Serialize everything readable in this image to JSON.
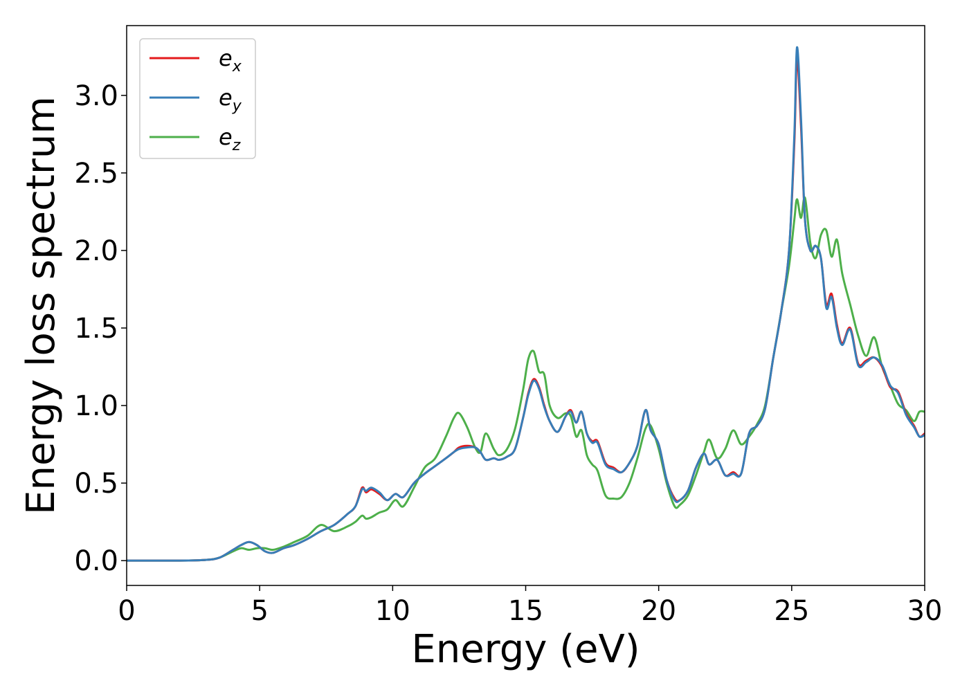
{
  "chart_data": {
    "type": "line",
    "xlabel": "Energy (eV)",
    "ylabel": "Energy loss spectrum",
    "xlim": [
      0,
      30
    ],
    "ylim": [
      -0.16,
      3.45
    ],
    "xticks": [
      0,
      5,
      10,
      15,
      20,
      25,
      30
    ],
    "xtick_labels": [
      "0",
      "5",
      "10",
      "15",
      "20",
      "25",
      "30"
    ],
    "yticks": [
      0.0,
      0.5,
      1.0,
      1.5,
      2.0,
      2.5,
      3.0
    ],
    "ytick_labels": [
      "0.0",
      "0.5",
      "1.0",
      "1.5",
      "2.0",
      "2.5",
      "3.0"
    ],
    "grid": false,
    "legend_position": "top-left",
    "series": [
      {
        "name": "e",
        "subscript": "x",
        "color": "#e41a1c",
        "x": [
          0,
          1,
          2,
          3,
          3.5,
          4.0,
          4.3,
          4.6,
          4.9,
          5.2,
          5.5,
          5.9,
          6.3,
          6.8,
          7.3,
          7.8,
          8.3,
          8.6,
          8.85,
          9.0,
          9.2,
          9.5,
          9.8,
          10.1,
          10.4,
          10.8,
          11.2,
          11.6,
          12.0,
          12.3,
          12.5,
          12.8,
          13.1,
          13.3,
          13.5,
          13.8,
          14.0,
          14.3,
          14.6,
          14.9,
          15.1,
          15.3,
          15.5,
          15.7,
          15.9,
          16.2,
          16.5,
          16.7,
          16.9,
          17.1,
          17.3,
          17.5,
          17.7,
          18.0,
          18.3,
          18.6,
          18.9,
          19.2,
          19.5,
          19.7,
          20.0,
          20.3,
          20.6,
          20.8,
          21.1,
          21.4,
          21.7,
          21.9,
          22.2,
          22.5,
          22.8,
          23.1,
          23.4,
          23.7,
          24.0,
          24.3,
          24.6,
          24.9,
          25.1,
          25.2,
          25.35,
          25.5,
          25.7,
          25.9,
          26.1,
          26.3,
          26.5,
          26.7,
          26.9,
          27.2,
          27.5,
          27.8,
          28.1,
          28.4,
          28.7,
          29.0,
          29.3,
          29.6,
          29.8,
          30.0
        ],
        "y": [
          0.0,
          0.0,
          0.0,
          0.005,
          0.02,
          0.07,
          0.1,
          0.12,
          0.1,
          0.06,
          0.05,
          0.08,
          0.1,
          0.14,
          0.19,
          0.23,
          0.3,
          0.35,
          0.47,
          0.44,
          0.46,
          0.43,
          0.39,
          0.43,
          0.41,
          0.5,
          0.56,
          0.61,
          0.66,
          0.7,
          0.73,
          0.74,
          0.73,
          0.7,
          0.65,
          0.66,
          0.65,
          0.67,
          0.72,
          0.92,
          1.08,
          1.17,
          1.12,
          1.0,
          0.9,
          0.83,
          0.93,
          0.97,
          0.89,
          0.96,
          0.82,
          0.77,
          0.77,
          0.63,
          0.6,
          0.57,
          0.63,
          0.74,
          0.97,
          0.84,
          0.75,
          0.52,
          0.4,
          0.39,
          0.45,
          0.6,
          0.69,
          0.62,
          0.65,
          0.55,
          0.57,
          0.56,
          0.82,
          0.87,
          0.98,
          1.3,
          1.6,
          2.0,
          2.7,
          3.24,
          2.8,
          2.2,
          2.0,
          2.03,
          1.95,
          1.65,
          1.72,
          1.52,
          1.4,
          1.5,
          1.27,
          1.29,
          1.31,
          1.25,
          1.12,
          1.09,
          0.95,
          0.87,
          0.8,
          0.82
        ]
      },
      {
        "name": "e",
        "subscript": "y",
        "color": "#377eb8",
        "x": [
          0,
          1,
          2,
          3,
          3.5,
          4.0,
          4.3,
          4.6,
          4.9,
          5.2,
          5.5,
          5.9,
          6.3,
          6.8,
          7.3,
          7.8,
          8.3,
          8.6,
          8.85,
          9.0,
          9.2,
          9.5,
          9.8,
          10.1,
          10.4,
          10.8,
          11.2,
          11.6,
          12.0,
          12.3,
          12.5,
          12.8,
          13.1,
          13.3,
          13.5,
          13.8,
          14.0,
          14.3,
          14.6,
          14.9,
          15.1,
          15.3,
          15.5,
          15.7,
          15.9,
          16.2,
          16.5,
          16.7,
          16.9,
          17.1,
          17.3,
          17.5,
          17.7,
          18.0,
          18.3,
          18.6,
          18.9,
          19.2,
          19.5,
          19.7,
          20.0,
          20.3,
          20.6,
          20.8,
          21.1,
          21.4,
          21.7,
          21.9,
          22.2,
          22.5,
          22.8,
          23.1,
          23.4,
          23.7,
          24.0,
          24.3,
          24.6,
          24.9,
          25.1,
          25.2,
          25.35,
          25.5,
          25.7,
          25.9,
          26.1,
          26.3,
          26.5,
          26.7,
          26.9,
          27.2,
          27.5,
          27.8,
          28.1,
          28.4,
          28.7,
          29.0,
          29.3,
          29.6,
          29.8,
          30.0
        ],
        "y": [
          0.0,
          0.0,
          0.0,
          0.005,
          0.02,
          0.07,
          0.1,
          0.12,
          0.1,
          0.06,
          0.05,
          0.08,
          0.1,
          0.14,
          0.19,
          0.23,
          0.3,
          0.35,
          0.46,
          0.45,
          0.47,
          0.44,
          0.39,
          0.43,
          0.41,
          0.5,
          0.56,
          0.61,
          0.66,
          0.7,
          0.72,
          0.73,
          0.73,
          0.7,
          0.65,
          0.66,
          0.65,
          0.67,
          0.72,
          0.92,
          1.07,
          1.16,
          1.11,
          0.99,
          0.9,
          0.83,
          0.93,
          0.96,
          0.89,
          0.96,
          0.82,
          0.76,
          0.76,
          0.62,
          0.59,
          0.57,
          0.63,
          0.74,
          0.97,
          0.84,
          0.75,
          0.52,
          0.39,
          0.39,
          0.45,
          0.6,
          0.69,
          0.62,
          0.65,
          0.55,
          0.56,
          0.56,
          0.82,
          0.87,
          0.98,
          1.3,
          1.6,
          2.0,
          2.75,
          3.31,
          2.85,
          2.2,
          2.0,
          2.03,
          1.95,
          1.63,
          1.7,
          1.5,
          1.39,
          1.49,
          1.26,
          1.28,
          1.31,
          1.26,
          1.13,
          1.08,
          0.94,
          0.86,
          0.8,
          0.81
        ]
      },
      {
        "name": "e",
        "subscript": "z",
        "color": "#4daf4a",
        "x": [
          0,
          1,
          2,
          3,
          3.5,
          4.0,
          4.3,
          4.6,
          4.9,
          5.2,
          5.5,
          5.9,
          6.3,
          6.8,
          7.3,
          7.8,
          8.3,
          8.6,
          8.85,
          9.0,
          9.2,
          9.5,
          9.8,
          10.1,
          10.4,
          10.8,
          11.2,
          11.6,
          12.0,
          12.3,
          12.5,
          12.8,
          13.1,
          13.3,
          13.5,
          13.8,
          14.0,
          14.3,
          14.6,
          14.9,
          15.1,
          15.3,
          15.5,
          15.7,
          15.9,
          16.2,
          16.5,
          16.7,
          16.9,
          17.1,
          17.3,
          17.5,
          17.7,
          18.0,
          18.3,
          18.6,
          18.9,
          19.2,
          19.5,
          19.7,
          20.0,
          20.3,
          20.6,
          20.8,
          21.1,
          21.4,
          21.7,
          21.9,
          22.2,
          22.5,
          22.8,
          23.1,
          23.4,
          23.7,
          24.0,
          24.3,
          24.6,
          24.9,
          25.1,
          25.2,
          25.35,
          25.5,
          25.7,
          25.9,
          26.1,
          26.3,
          26.5,
          26.7,
          26.9,
          27.2,
          27.5,
          27.8,
          28.1,
          28.4,
          28.7,
          29.0,
          29.3,
          29.6,
          29.8,
          30.0
        ],
        "y": [
          0.0,
          0.0,
          0.0,
          0.005,
          0.02,
          0.06,
          0.08,
          0.07,
          0.08,
          0.08,
          0.07,
          0.09,
          0.12,
          0.16,
          0.23,
          0.19,
          0.22,
          0.25,
          0.29,
          0.27,
          0.28,
          0.31,
          0.33,
          0.39,
          0.35,
          0.47,
          0.6,
          0.66,
          0.8,
          0.92,
          0.95,
          0.86,
          0.73,
          0.7,
          0.82,
          0.72,
          0.68,
          0.72,
          0.85,
          1.1,
          1.3,
          1.35,
          1.22,
          1.2,
          1.0,
          0.92,
          0.95,
          0.93,
          0.8,
          0.84,
          0.68,
          0.62,
          0.58,
          0.42,
          0.4,
          0.41,
          0.5,
          0.66,
          0.85,
          0.87,
          0.72,
          0.5,
          0.35,
          0.36,
          0.42,
          0.55,
          0.7,
          0.78,
          0.66,
          0.72,
          0.84,
          0.75,
          0.8,
          0.88,
          1.0,
          1.3,
          1.6,
          1.9,
          2.2,
          2.33,
          2.21,
          2.34,
          2.05,
          1.95,
          2.1,
          2.13,
          1.96,
          2.07,
          1.85,
          1.65,
          1.45,
          1.32,
          1.44,
          1.25,
          1.13,
          1.01,
          0.97,
          0.9,
          0.96,
          0.96
        ]
      }
    ]
  }
}
